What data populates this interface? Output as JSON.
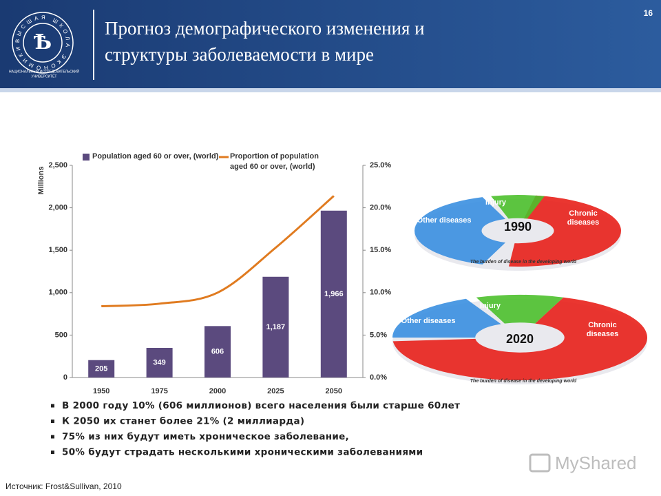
{
  "header": {
    "title_lines": [
      "Прогноз демографического изменения и",
      "структуры заболеваемости в мире"
    ],
    "page_number": "16",
    "logo": {
      "ring_text": "ВЫСШАЯ ШКОЛА ЭКОНОМИКИ",
      "caption_lines": [
        "НАЦИОНАЛЬНЫЙ ИССЛЕДОВАТЕЛЬСКИЙ",
        "УНИВЕРСИТЕТ"
      ]
    }
  },
  "chart_data": {
    "type": "bar",
    "y_label": "Millions",
    "categories": [
      "1950",
      "1975",
      "2000",
      "2025",
      "2050"
    ],
    "series": [
      {
        "name": "Population aged 60 or over, (world)",
        "color": "#5b4a7e",
        "values": [
          205,
          349,
          606,
          1187,
          1966
        ],
        "value_labels": [
          "205",
          "349",
          "606",
          "1,187",
          "1,966"
        ]
      },
      {
        "name": "Proportion of population aged 60 or over, (world)",
        "color": "#e07b20",
        "type": "line",
        "axis": "y2",
        "values": [
          8.4,
          8.7,
          10.0,
          15.3,
          21.4
        ]
      }
    ],
    "ylim": [
      0,
      2500
    ],
    "yticks": [
      0,
      500,
      {
        "value": 1000,
        "label": "1,000"
      },
      {
        "value": 1500,
        "label": "1,500"
      },
      {
        "value": 2000,
        "label": "2,000"
      },
      {
        "value": 2500,
        "label": "2,500"
      }
    ],
    "y2lim": [
      0,
      25
    ],
    "y2ticks": [
      {
        "value": 0,
        "label": "0.0%"
      },
      {
        "value": 5,
        "label": "5.0%"
      },
      {
        "value": 10,
        "label": "10.0%"
      },
      {
        "value": 15,
        "label": "15.0%"
      },
      {
        "value": 20,
        "label": "20.0%"
      },
      {
        "value": 25,
        "label": "25.0%"
      }
    ],
    "grid": false
  },
  "infographics": [
    {
      "year": "1990",
      "injury": "Injury",
      "other": "Other diseases",
      "chronic": "Chronic diseases",
      "caption": "The burden of disease in the developing world"
    },
    {
      "year": "2020",
      "injury": "Injury",
      "other": "Other diseases",
      "chronic": "Chronic diseases",
      "caption": "The burden of disease in the developing world"
    }
  ],
  "bullets": [
    "В 2000 году 10% (606 миллионов) всего  населения были старше 60лет",
    "К 2050 их станет более 21% (2 миллиарда)",
    "75% из них будут иметь хроническое заболевание,",
    "50% будут страдать несколькими хроническими заболеваниями"
  ],
  "source": "Источник: Frost&Sullivan, 2010",
  "watermark": "MyShared"
}
